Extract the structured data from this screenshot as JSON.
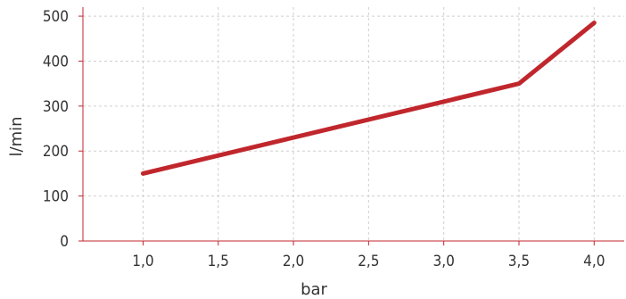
{
  "chart_data": {
    "type": "line",
    "x": [
      1.0,
      3.5,
      4.0
    ],
    "x_ticks": [
      "1,0",
      "1,5",
      "2,0",
      "2,5",
      "3,0",
      "3,5",
      "4,0"
    ],
    "x_tick_values": [
      1.0,
      1.5,
      2.0,
      2.5,
      3.0,
      3.5,
      4.0
    ],
    "y_ticks": [
      "0",
      "100",
      "200",
      "300",
      "400",
      "500"
    ],
    "y_tick_values": [
      0,
      100,
      200,
      300,
      400,
      500
    ],
    "xlabel": "bar",
    "ylabel": "l/min",
    "xlim": [
      0.6,
      4.2
    ],
    "ylim": [
      0,
      520
    ],
    "grid": true,
    "series": [
      {
        "values": [
          150,
          350,
          485
        ],
        "color": "#c0272d"
      }
    ]
  }
}
